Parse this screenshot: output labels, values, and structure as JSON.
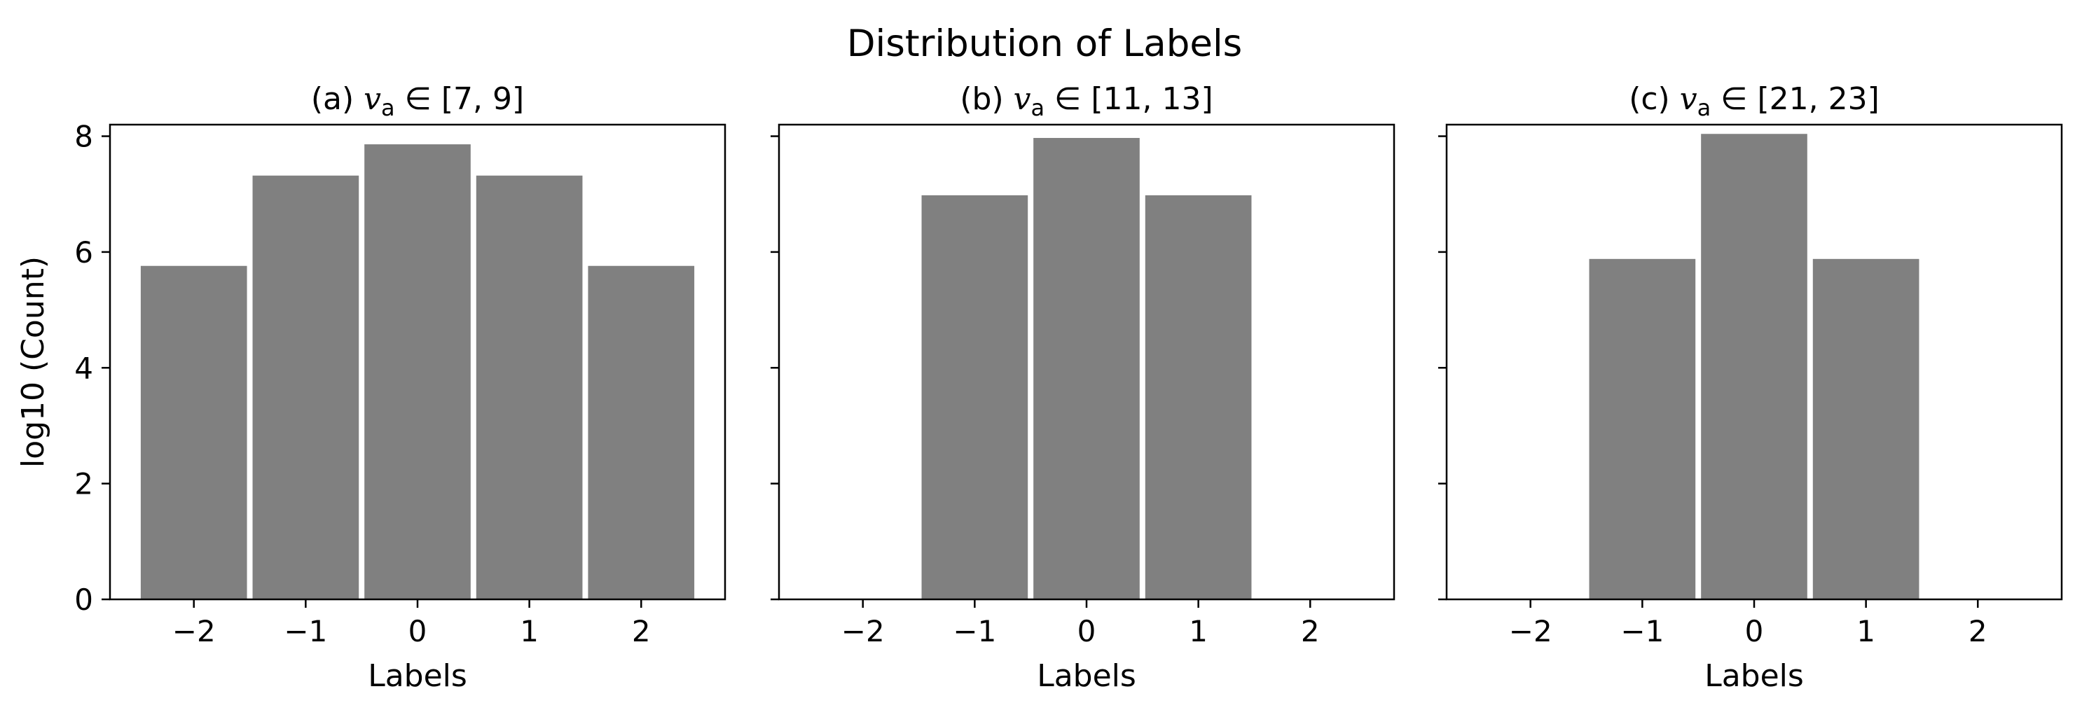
{
  "figure": {
    "suptitle": "Distribution of Labels"
  },
  "chart_data": [
    {
      "type": "bar",
      "title": {
        "prefix": "(a) ",
        "var": "v",
        "sub": "a",
        "range": "∈ [7, 9]"
      },
      "xlabel": "Labels",
      "ylabel": "log10 (Count)",
      "categories": [
        -2,
        -1,
        0,
        1,
        2
      ],
      "values": [
        5.76,
        7.32,
        7.86,
        7.32,
        5.76
      ],
      "xlim": [
        -2.75,
        2.75
      ],
      "ylim": [
        0,
        8.2
      ],
      "xticks": [
        -2,
        -1,
        0,
        1,
        2
      ],
      "yticks": [
        0,
        2,
        4,
        6,
        8
      ],
      "color": "#808080",
      "grid": false
    },
    {
      "type": "bar",
      "title": {
        "prefix": "(b) ",
        "var": "v",
        "sub": "a",
        "range": "∈ [11, 13]"
      },
      "xlabel": "Labels",
      "ylabel": "",
      "categories": [
        -1,
        0,
        1
      ],
      "values": [
        6.98,
        7.97,
        6.98
      ],
      "xlim": [
        -2.75,
        2.75
      ],
      "ylim": [
        0,
        8.2
      ],
      "xticks": [
        -2,
        -1,
        0,
        1,
        2
      ],
      "yticks": [
        0,
        2,
        4,
        6,
        8
      ],
      "color": "#808080",
      "grid": false
    },
    {
      "type": "bar",
      "title": {
        "prefix": "(c) ",
        "var": "v",
        "sub": "a",
        "range": "∈ [21, 23]"
      },
      "xlabel": "Labels",
      "ylabel": "",
      "categories": [
        -1,
        0,
        1
      ],
      "values": [
        5.88,
        8.04,
        5.88
      ],
      "xlim": [
        -2.75,
        2.75
      ],
      "ylim": [
        0,
        8.2
      ],
      "xticks": [
        -2,
        -1,
        0,
        1,
        2
      ],
      "yticks": [
        0,
        2,
        4,
        6,
        8
      ],
      "color": "#808080",
      "grid": false
    }
  ]
}
